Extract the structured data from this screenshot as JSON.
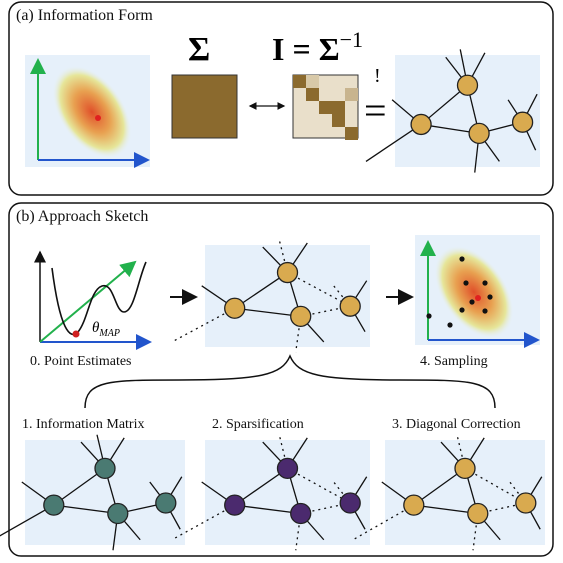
{
  "panel_a": {
    "title": "(a) Information Form",
    "sigma_label": "Σ",
    "inverse_lhs": "I = Σ",
    "inverse_exp": "−1",
    "constraint_mark": "!",
    "constraint_eq": "="
  },
  "panel_b": {
    "title": "(b) Approach Sketch",
    "theta": "θ",
    "theta_sub": "MAP",
    "steps": [
      "0. Point Estimates",
      "1. Information Matrix",
      "2. Sparsification",
      "3. Diagonal Correction",
      "4. Sampling"
    ]
  }
}
